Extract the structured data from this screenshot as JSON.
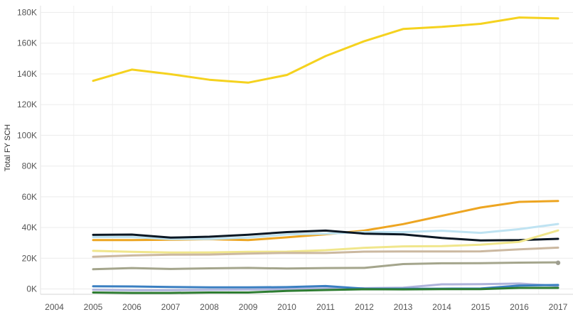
{
  "chart_data": {
    "type": "line",
    "title": "",
    "xlabel": "",
    "ylabel": "Total FY SCH",
    "x": [
      2004,
      2005,
      2006,
      2007,
      2008,
      2009,
      2010,
      2011,
      2012,
      2013,
      2014,
      2015,
      2016,
      2017
    ],
    "x_tick_labels": [
      "2004",
      "2005",
      "2006",
      "2007",
      "2008",
      "2009",
      "2010",
      "2011",
      "2012",
      "2013",
      "2014",
      "2015",
      "2016",
      "2017"
    ],
    "y_tick_values": [
      0,
      20000,
      40000,
      60000,
      80000,
      100000,
      120000,
      140000,
      160000,
      180000
    ],
    "y_tick_labels": [
      "0K",
      "20K",
      "40K",
      "60K",
      "80K",
      "100K",
      "120K",
      "140K",
      "160K",
      "180K"
    ],
    "xlim": [
      2004,
      2017
    ],
    "ylim": [
      -4000,
      182000
    ],
    "grid": true,
    "legend": "none",
    "series": [
      {
        "color": "#F5D21F",
        "x": [
          2005,
          2006,
          2007,
          2008,
          2009,
          2010,
          2011,
          2012,
          2013,
          2014,
          2015,
          2016,
          2017
        ],
        "values": [
          135500,
          142800,
          139800,
          136200,
          134300,
          139300,
          151600,
          161300,
          169200,
          170600,
          172600,
          176700,
          176100
        ]
      },
      {
        "color": "#EDA521",
        "x": [
          2005,
          2006,
          2007,
          2008,
          2009,
          2010,
          2011,
          2012,
          2013,
          2014,
          2015,
          2016,
          2017
        ],
        "values": [
          31800,
          31800,
          32000,
          32400,
          31800,
          33600,
          35600,
          38000,
          42200,
          47600,
          53000,
          56700,
          57300
        ]
      },
      {
        "color": "#BFE3F2",
        "x": [
          2005,
          2006,
          2007,
          2008,
          2009,
          2010,
          2011,
          2012,
          2013,
          2014,
          2015,
          2016,
          2017
        ],
        "values": [
          33800,
          33800,
          32500,
          32500,
          33500,
          35500,
          36000,
          37000,
          37000,
          37900,
          36500,
          38900,
          42300
        ]
      },
      {
        "color": "#0B1723",
        "x": [
          2005,
          2006,
          2007,
          2008,
          2009,
          2010,
          2011,
          2012,
          2013,
          2014,
          2015,
          2016,
          2017
        ],
        "values": [
          35200,
          35400,
          33400,
          34000,
          35300,
          37000,
          38000,
          36000,
          35500,
          33200,
          31600,
          31800,
          32600
        ]
      },
      {
        "color": "#F0E68C",
        "x": [
          2005,
          2006,
          2007,
          2008,
          2009,
          2010,
          2011,
          2012,
          2013,
          2014,
          2015,
          2016,
          2017
        ],
        "values": [
          24800,
          24200,
          23700,
          23800,
          24200,
          24300,
          25200,
          26800,
          27700,
          27900,
          28800,
          30700,
          38100
        ]
      },
      {
        "color": "#CBB8A0",
        "x": [
          2005,
          2006,
          2007,
          2008,
          2009,
          2010,
          2011,
          2012,
          2013,
          2014,
          2015,
          2016,
          2017
        ],
        "values": [
          20900,
          21800,
          22300,
          22400,
          23000,
          23500,
          23400,
          24300,
          24400,
          24400,
          24500,
          25800,
          26900
        ]
      },
      {
        "color": "#A4A58C",
        "x": [
          2005,
          2006,
          2007,
          2008,
          2009,
          2010,
          2011,
          2012,
          2013,
          2014,
          2015,
          2016,
          2017
        ],
        "values": [
          12800,
          13600,
          13000,
          13400,
          13700,
          13300,
          13600,
          13700,
          16200,
          16700,
          16800,
          17100,
          17300
        ]
      },
      {
        "color": "#AEB3DB",
        "x": [
          2005,
          2006,
          2007,
          2008,
          2009,
          2010,
          2011,
          2012,
          2013,
          2014,
          2015,
          2016,
          2017
        ],
        "values": [
          -500,
          -800,
          -800,
          -600,
          -400,
          -100,
          400,
          500,
          800,
          3000,
          3100,
          3500,
          2000
        ]
      },
      {
        "color": "#3A7FC1",
        "x": [
          2005,
          2006,
          2007,
          2008,
          2009,
          2010,
          2011,
          2012,
          2013,
          2014,
          2015,
          2016,
          2017
        ],
        "values": [
          1700,
          1600,
          1300,
          1000,
          1000,
          1200,
          1900,
          200,
          100,
          200,
          300,
          2200,
          2600
        ]
      },
      {
        "color": "#2E7D32",
        "x": [
          2005,
          2006,
          2007,
          2008,
          2009,
          2010,
          2011,
          2012,
          2013,
          2014,
          2015,
          2016,
          2017
        ],
        "values": [
          -2300,
          -2600,
          -2600,
          -2300,
          -2300,
          -1300,
          -700,
          -200,
          -300,
          -100,
          -100,
          700,
          700
        ]
      }
    ],
    "end_point": {
      "x": 2017,
      "value": 17000,
      "color": "#9E9E90"
    }
  }
}
